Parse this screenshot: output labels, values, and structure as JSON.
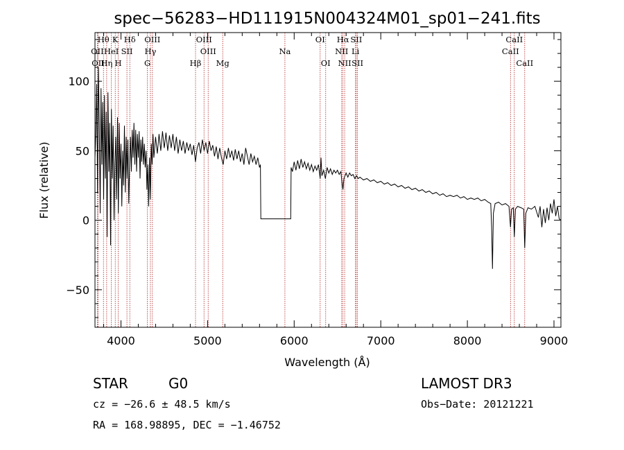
{
  "chart_data": {
    "type": "line",
    "title": "spec−56283−HD111915N004324M01_sp01−241.fits",
    "xlabel": "Wavelength (Å)",
    "ylabel": "Flux (relative)",
    "xlim": [
      3700,
      9080
    ],
    "ylim": [
      -77,
      135
    ],
    "xticks": [
      4000,
      5000,
      6000,
      7000,
      8000,
      9000
    ],
    "yticks": [
      -50,
      0,
      50,
      100
    ],
    "grid": false,
    "line_color": "#000000",
    "marker_color": "#b22222",
    "spectral_lines": [
      {
        "label": "Hθ",
        "x": 3798,
        "row": 0
      },
      {
        "label": "K",
        "x": 3934,
        "row": 0
      },
      {
        "label": "Hδ",
        "x": 4102,
        "row": 0
      },
      {
        "label": "OIII",
        "x": 4363,
        "row": 0
      },
      {
        "label": "OIII",
        "x": 4959,
        "row": 0
      },
      {
        "label": "OI",
        "x": 6300,
        "row": 0
      },
      {
        "label": "Hα",
        "x": 6563,
        "row": 0
      },
      {
        "label": "SII",
        "x": 6717,
        "row": 0
      },
      {
        "label": "CaII",
        "x": 8542,
        "row": 0
      },
      {
        "label": "OII",
        "x": 3727,
        "row": 1
      },
      {
        "label": "HeI",
        "x": 3889,
        "row": 1
      },
      {
        "label": "SII",
        "x": 4069,
        "row": 1
      },
      {
        "label": "Hγ",
        "x": 4340,
        "row": 1
      },
      {
        "label": "OIII",
        "x": 5007,
        "row": 1
      },
      {
        "label": "Na",
        "x": 5893,
        "row": 1
      },
      {
        "label": "NII",
        "x": 6548,
        "row": 1
      },
      {
        "label": "Li",
        "x": 6708,
        "row": 1
      },
      {
        "label": "CaII",
        "x": 8498,
        "row": 1
      },
      {
        "label": "OII",
        "x": 3736,
        "row": 2
      },
      {
        "label": "Hη",
        "x": 3835,
        "row": 2
      },
      {
        "label": "H",
        "x": 3968,
        "row": 2
      },
      {
        "label": "G",
        "x": 4305,
        "row": 2
      },
      {
        "label": "Hβ",
        "x": 4861,
        "row": 2
      },
      {
        "label": "Mg",
        "x": 5175,
        "row": 2
      },
      {
        "label": "OI",
        "x": 6364,
        "row": 2
      },
      {
        "label": "NII",
        "x": 6583,
        "row": 2
      },
      {
        "label": "SII",
        "x": 6731,
        "row": 2
      },
      {
        "label": "CaII",
        "x": 8662,
        "row": 2
      }
    ],
    "series": [
      {
        "name": "flux",
        "points": [
          [
            3700,
            45
          ],
          [
            3710,
            62
          ],
          [
            3720,
            98
          ],
          [
            3730,
            20
          ],
          [
            3740,
            110
          ],
          [
            3750,
            70
          ],
          [
            3760,
            5
          ],
          [
            3770,
            95
          ],
          [
            3780,
            40
          ],
          [
            3790,
            85
          ],
          [
            3800,
            15
          ],
          [
            3810,
            90
          ],
          [
            3820,
            30
          ],
          [
            3830,
            78
          ],
          [
            3840,
            -12
          ],
          [
            3850,
            92
          ],
          [
            3860,
            35
          ],
          [
            3870,
            70
          ],
          [
            3880,
            -18
          ],
          [
            3890,
            80
          ],
          [
            3900,
            30
          ],
          [
            3910,
            68
          ],
          [
            3920,
            0
          ],
          [
            3930,
            40
          ],
          [
            3940,
            60
          ],
          [
            3950,
            15
          ],
          [
            3960,
            74
          ],
          [
            3970,
            5
          ],
          [
            3980,
            70
          ],
          [
            3990,
            30
          ],
          [
            4000,
            55
          ],
          [
            4010,
            10
          ],
          [
            4020,
            50
          ],
          [
            4030,
            25
          ],
          [
            4040,
            68
          ],
          [
            4050,
            20
          ],
          [
            4060,
            60
          ],
          [
            4070,
            30
          ],
          [
            4080,
            58
          ],
          [
            4090,
            12
          ],
          [
            4100,
            40
          ],
          [
            4110,
            60
          ],
          [
            4120,
            35
          ],
          [
            4130,
            65
          ],
          [
            4140,
            45
          ],
          [
            4150,
            70
          ],
          [
            4160,
            40
          ],
          [
            4170,
            65
          ],
          [
            4180,
            35
          ],
          [
            4190,
            62
          ],
          [
            4200,
            45
          ],
          [
            4210,
            64
          ],
          [
            4220,
            30
          ],
          [
            4230,
            58
          ],
          [
            4240,
            42
          ],
          [
            4250,
            60
          ],
          [
            4260,
            40
          ],
          [
            4270,
            55
          ],
          [
            4280,
            38
          ],
          [
            4290,
            50
          ],
          [
            4300,
            22
          ],
          [
            4310,
            40
          ],
          [
            4320,
            10
          ],
          [
            4330,
            45
          ],
          [
            4340,
            15
          ],
          [
            4350,
            55
          ],
          [
            4360,
            40
          ],
          [
            4370,
            62
          ],
          [
            4380,
            45
          ],
          [
            4400,
            60
          ],
          [
            4420,
            48
          ],
          [
            4440,
            62
          ],
          [
            4460,
            50
          ],
          [
            4480,
            64
          ],
          [
            4500,
            52
          ],
          [
            4520,
            63
          ],
          [
            4540,
            50
          ],
          [
            4560,
            61
          ],
          [
            4580,
            52
          ],
          [
            4600,
            62
          ],
          [
            4620,
            50
          ],
          [
            4640,
            60
          ],
          [
            4660,
            48
          ],
          [
            4680,
            58
          ],
          [
            4700,
            50
          ],
          [
            4720,
            57
          ],
          [
            4740,
            48
          ],
          [
            4760,
            56
          ],
          [
            4780,
            50
          ],
          [
            4800,
            55
          ],
          [
            4820,
            47
          ],
          [
            4840,
            54
          ],
          [
            4860,
            42
          ],
          [
            4880,
            52
          ],
          [
            4900,
            56
          ],
          [
            4920,
            48
          ],
          [
            4940,
            58
          ],
          [
            4960,
            50
          ],
          [
            4980,
            56
          ],
          [
            5000,
            48
          ],
          [
            5020,
            57
          ],
          [
            5040,
            50
          ],
          [
            5060,
            54
          ],
          [
            5080,
            46
          ],
          [
            5100,
            53
          ],
          [
            5120,
            44
          ],
          [
            5140,
            52
          ],
          [
            5160,
            45
          ],
          [
            5180,
            40
          ],
          [
            5200,
            50
          ],
          [
            5220,
            44
          ],
          [
            5240,
            52
          ],
          [
            5260,
            45
          ],
          [
            5280,
            50
          ],
          [
            5300,
            43
          ],
          [
            5320,
            51
          ],
          [
            5340,
            44
          ],
          [
            5360,
            50
          ],
          [
            5380,
            42
          ],
          [
            5400,
            48
          ],
          [
            5420,
            40
          ],
          [
            5440,
            52
          ],
          [
            5460,
            46
          ],
          [
            5480,
            40
          ],
          [
            5500,
            48
          ],
          [
            5520,
            42
          ],
          [
            5540,
            46
          ],
          [
            5560,
            40
          ],
          [
            5580,
            45
          ],
          [
            5600,
            38
          ],
          [
            5610,
            40
          ],
          [
            5615,
            1
          ],
          [
            5960,
            1
          ],
          [
            5965,
            38
          ],
          [
            5980,
            35
          ],
          [
            6000,
            42
          ],
          [
            6020,
            36
          ],
          [
            6040,
            43
          ],
          [
            6060,
            37
          ],
          [
            6080,
            44
          ],
          [
            6100,
            38
          ],
          [
            6120,
            42
          ],
          [
            6140,
            37
          ],
          [
            6160,
            41
          ],
          [
            6180,
            36
          ],
          [
            6200,
            40
          ],
          [
            6220,
            35
          ],
          [
            6240,
            39
          ],
          [
            6260,
            36
          ],
          [
            6280,
            40
          ],
          [
            6300,
            30
          ],
          [
            6310,
            45
          ],
          [
            6320,
            32
          ],
          [
            6340,
            36
          ],
          [
            6360,
            30
          ],
          [
            6380,
            38
          ],
          [
            6400,
            34
          ],
          [
            6420,
            37
          ],
          [
            6440,
            33
          ],
          [
            6460,
            36
          ],
          [
            6480,
            34
          ],
          [
            6500,
            36
          ],
          [
            6520,
            33
          ],
          [
            6540,
            35
          ],
          [
            6550,
            28
          ],
          [
            6563,
            22
          ],
          [
            6575,
            30
          ],
          [
            6600,
            34
          ],
          [
            6620,
            31
          ],
          [
            6640,
            34
          ],
          [
            6660,
            32
          ],
          [
            6680,
            33
          ],
          [
            6700,
            30
          ],
          [
            6720,
            32
          ],
          [
            6740,
            30
          ],
          [
            6760,
            31
          ],
          [
            6800,
            29
          ],
          [
            6840,
            30
          ],
          [
            6880,
            28
          ],
          [
            6920,
            29
          ],
          [
            6960,
            27
          ],
          [
            7000,
            28
          ],
          [
            7040,
            26
          ],
          [
            7080,
            27
          ],
          [
            7120,
            25
          ],
          [
            7160,
            26
          ],
          [
            7200,
            24
          ],
          [
            7240,
            25
          ],
          [
            7280,
            23
          ],
          [
            7320,
            24
          ],
          [
            7360,
            22
          ],
          [
            7400,
            23
          ],
          [
            7440,
            21
          ],
          [
            7480,
            22
          ],
          [
            7520,
            20
          ],
          [
            7560,
            21
          ],
          [
            7600,
            19
          ],
          [
            7640,
            20
          ],
          [
            7680,
            18
          ],
          [
            7720,
            19
          ],
          [
            7760,
            17
          ],
          [
            7800,
            18
          ],
          [
            7840,
            17
          ],
          [
            7880,
            18
          ],
          [
            7920,
            16
          ],
          [
            7960,
            17
          ],
          [
            8000,
            15
          ],
          [
            8040,
            16
          ],
          [
            8080,
            15
          ],
          [
            8120,
            16
          ],
          [
            8160,
            14
          ],
          [
            8200,
            15
          ],
          [
            8240,
            13
          ],
          [
            8270,
            12
          ],
          [
            8280,
            -5
          ],
          [
            8290,
            -35
          ],
          [
            8300,
            5
          ],
          [
            8320,
            12
          ],
          [
            8360,
            13
          ],
          [
            8400,
            11
          ],
          [
            8440,
            12
          ],
          [
            8480,
            10
          ],
          [
            8498,
            -5
          ],
          [
            8510,
            8
          ],
          [
            8530,
            9
          ],
          [
            8542,
            -12
          ],
          [
            8555,
            8
          ],
          [
            8580,
            10
          ],
          [
            8620,
            9
          ],
          [
            8650,
            8
          ],
          [
            8662,
            -20
          ],
          [
            8675,
            5
          ],
          [
            8700,
            9
          ],
          [
            8740,
            8
          ],
          [
            8780,
            10
          ],
          [
            8820,
            2
          ],
          [
            8840,
            10
          ],
          [
            8860,
            -5
          ],
          [
            8880,
            8
          ],
          [
            8900,
            -2
          ],
          [
            8920,
            9
          ],
          [
            8940,
            0
          ],
          [
            8960,
            12
          ],
          [
            8980,
            5
          ],
          [
            9000,
            15
          ],
          [
            9020,
            3
          ],
          [
            9040,
            10
          ],
          [
            9060,
            1
          ],
          [
            9080,
            0
          ]
        ]
      }
    ]
  },
  "footer": {
    "object_type": "STAR",
    "subclass": "G0",
    "survey": "LAMOST DR3",
    "cz": "cz = −26.6 ± 48.5 km/s",
    "obs_date": "Obs−Date: 20121221",
    "coords": "RA = 168.98895, DEC =  −1.46752"
  }
}
